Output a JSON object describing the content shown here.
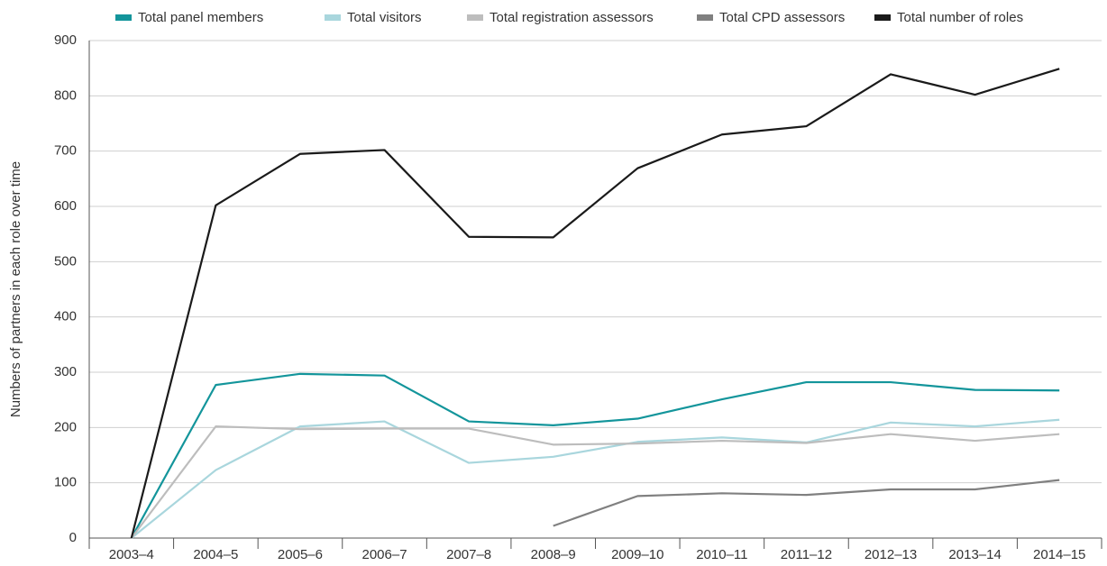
{
  "chart_data": {
    "type": "line",
    "ylabel": "Numbers of partners in each role over time",
    "categories": [
      "2003–4",
      "2004–5",
      "2005–6",
      "2006–7",
      "2007–8",
      "2008–9",
      "2009–10",
      "2010–11",
      "2011–12",
      "2012–13",
      "2013–14",
      "2014–15"
    ],
    "series": [
      {
        "name": "Total panel members",
        "color": "#13959b",
        "values": [
          0,
          277,
          297,
          294,
          211,
          204,
          216,
          251,
          282,
          282,
          268,
          267
        ]
      },
      {
        "name": "Total visitors",
        "color": "#a9d6dd",
        "values": [
          0,
          123,
          202,
          211,
          136,
          147,
          174,
          182,
          173,
          209,
          202,
          214
        ]
      },
      {
        "name": "Total registration assessors",
        "color": "#bdbdbd",
        "values": [
          0,
          202,
          197,
          198,
          198,
          169,
          171,
          176,
          172,
          188,
          176,
          188
        ]
      },
      {
        "name": "Total CPD assessors",
        "color": "#808080",
        "values": [
          null,
          null,
          null,
          null,
          null,
          22,
          76,
          81,
          78,
          88,
          88,
          105
        ]
      },
      {
        "name": "Total number of roles",
        "color": "#1a1a1a",
        "values": [
          0,
          602,
          695,
          702,
          545,
          544,
          669,
          730,
          745,
          839,
          802,
          849
        ]
      }
    ],
    "ylim": [
      0,
      900
    ],
    "yticks": [
      0,
      100,
      200,
      300,
      400,
      500,
      600,
      700,
      800,
      900
    ],
    "grid": true,
    "legend": "top"
  }
}
